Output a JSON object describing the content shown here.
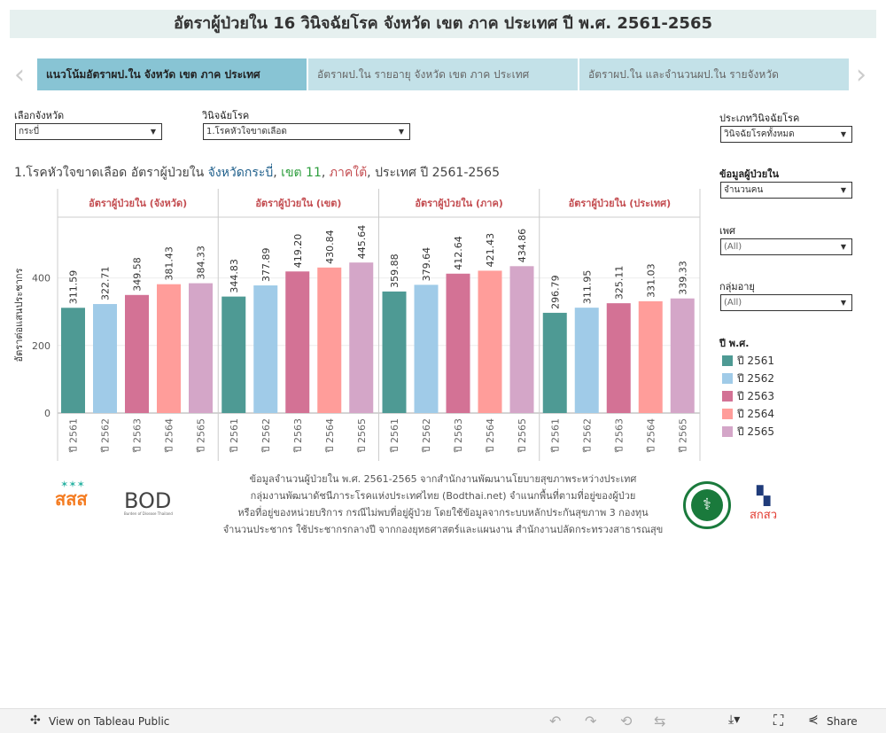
{
  "title": "อัตราผู้ป่วยใน 16 วินิจฉัยโรค จังหวัด เขต ภาค ประเทศ ปี พ.ศ. 2561-2565",
  "tabs": [
    {
      "label": "แนวโน้มอัตราผป.ใน จังหวัด เขต ภาค ประเทศ",
      "active": true
    },
    {
      "label": "อัตราผป.ใน รายอายุ จังหวัด เขต ภาค ประเทศ",
      "active": false
    },
    {
      "label": "อัตราผป.ใน และจำนวนผป.ใน รายจังหวัด",
      "active": false
    }
  ],
  "filters": {
    "province": {
      "label": "เลือกจังหวัด",
      "value": "กระบี่"
    },
    "diagnosis": {
      "label": "วินิจฉัยโรค",
      "value": "1.โรคหัวใจขาดเลือด"
    },
    "diag_type": {
      "label": "ประเภทวินิจฉัยโรค",
      "value": "วินิจฉัยโรคทั้งหมด"
    },
    "data_type": {
      "label": "ข้อมูลผู้ป่วยใน",
      "value": "จำนวนคน"
    },
    "sex": {
      "label": "เพศ",
      "value": "(All)"
    },
    "age": {
      "label": "กลุ่มอายุ",
      "value": "(All)"
    }
  },
  "subtitle": {
    "prefix": "1.โรคหัวใจขาดเลือด อัตราผู้ป่วยใน ",
    "province": "จังหวัดกระบี่",
    "sep1": ", ",
    "region": "เขต 11",
    "sep2": ", ",
    "area": "ภาคใต้",
    "suffix": ", ประเทศ ปี 2561-2565"
  },
  "legend": {
    "title": "ปี พ.ศ.",
    "items": [
      "ปี 2561",
      "ปี 2562",
      "ปี 2563",
      "ปี 2564",
      "ปี 2565"
    ]
  },
  "colors": [
    "#4e9a94",
    "#a0cbe8",
    "#d37295",
    "#ff9d9a",
    "#d4a6c8"
  ],
  "chart_data": {
    "type": "bar",
    "ylabel": "อัตราต่อแสนประชากร",
    "yticks": [
      0,
      200,
      400
    ],
    "ylim": [
      0,
      580
    ],
    "categories": [
      "ปี 2561",
      "ปี 2562",
      "ปี 2563",
      "ปี 2564",
      "ปี 2565"
    ],
    "panels": [
      {
        "title": "อัตราผู้ป่วยใน (จังหวัด)",
        "values": [
          311.59,
          322.71,
          349.58,
          381.43,
          384.33
        ]
      },
      {
        "title": "อัตราผู้ป่วยใน (เขต)",
        "values": [
          344.83,
          377.89,
          419.2,
          430.84,
          445.64
        ]
      },
      {
        "title": "อัตราผู้ป่วยใน (ภาค)",
        "values": [
          359.88,
          379.64,
          412.64,
          421.43,
          434.86
        ]
      },
      {
        "title": "อัตราผู้ป่วยใน (ประเทศ)",
        "values": [
          296.79,
          311.95,
          325.11,
          331.03,
          339.33
        ]
      }
    ]
  },
  "footnote": [
    "ข้อมูลจำนวนผู้ป่วยใน พ.ศ. 2561-2565 จากสำนักงานพัฒนานโยบายสุขภาพระหว่างประเทศ",
    "กลุ่มงานพัฒนาดัชนีภาระโรคแห่งประเทศไทย (Bodthai.net) จำแนกพื้นที่ตามที่อยู่ของผู้ป่วย",
    "หรือที่อยู่ของหน่วยบริการ กรณีไม่พบที่อยู่ผู้ป่วย โดยใช้ข้อมูลจากระบบหลักประกันสุขภาพ 3 กองทุน",
    "จำนวนประชากร ใช้ประชากรกลางปี จากกองยุทธศาสตร์และแผนงาน สำนักงานปลัดกระทรวงสาธารณสุข"
  ],
  "logos": {
    "thaihealth": "สสส",
    "bod": "BOD",
    "bod_sub": "Burden of Disease Thailand",
    "nhso": "สกสว"
  },
  "bottombar": {
    "view_label": "View on Tableau Public",
    "share_label": "Share"
  }
}
